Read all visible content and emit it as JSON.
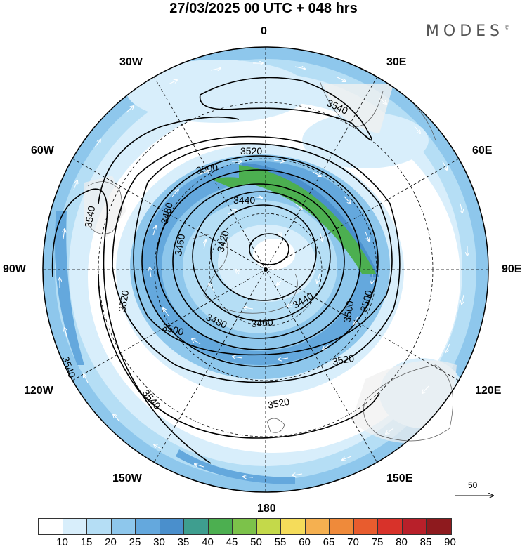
{
  "header": {
    "title": "27/03/2025  00 UTC  + 048 hrs"
  },
  "brand": {
    "name": "MODES",
    "mark": "©"
  },
  "map": {
    "projection": "south-polar-stereographic",
    "longitude_labels": [
      "0",
      "30E",
      "60E",
      "90E",
      "120E",
      "150E",
      "180",
      "150W",
      "120W",
      "90W",
      "60W",
      "30W"
    ],
    "contour_labels": [
      "3540",
      "3520",
      "3500",
      "3480",
      "3460",
      "3440",
      "3420",
      "3520",
      "3500",
      "3460",
      "3440",
      "3500",
      "3540",
      "3520",
      "3480",
      "3500",
      "3520",
      "3540",
      "3540"
    ],
    "wind_scale_label": "50"
  },
  "colorbar": {
    "ticks": [
      "10",
      "15",
      "20",
      "25",
      "30",
      "35",
      "40",
      "45",
      "50",
      "55",
      "60",
      "65",
      "70",
      "75",
      "80",
      "85",
      "90"
    ],
    "colors": [
      "#ffffff",
      "#d8eefb",
      "#b5def5",
      "#8ec7ec",
      "#64a8dd",
      "#4a8fcc",
      "#3e9e8f",
      "#4caf50",
      "#7cc24a",
      "#c4d94a",
      "#f5dc5a",
      "#f5b050",
      "#ef8a3a",
      "#e85c2e",
      "#d8322a",
      "#b8202a",
      "#8e1a1e"
    ]
  }
}
